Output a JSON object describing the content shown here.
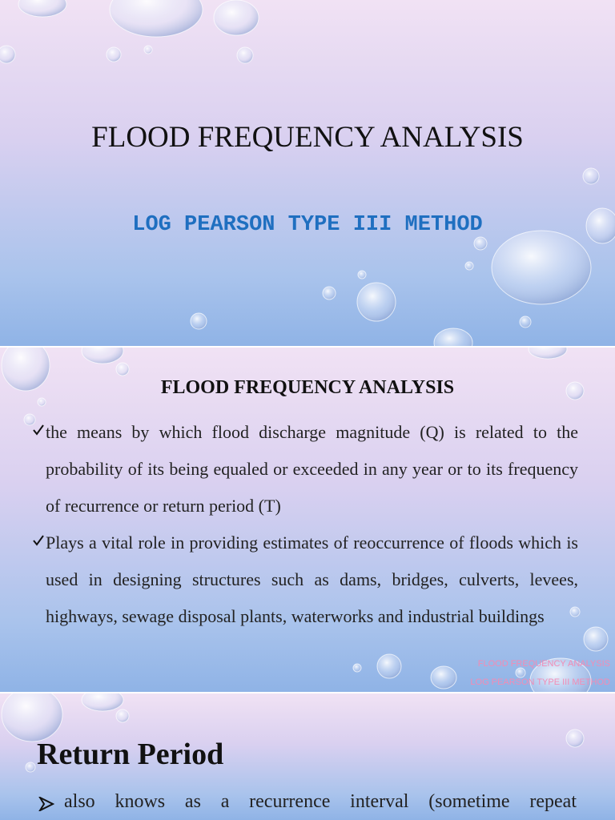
{
  "slides": [
    {
      "title": "FLOOD FREQUENCY ANALYSIS",
      "subtitle": "LOG PEARSON TYPE III METHOD"
    },
    {
      "heading": "FLOOD FREQUENCY ANALYSIS",
      "bullets": [
        "the means by which flood discharge magnitude (Q) is related to the probability of its being equaled or exceeded in any year or to its frequency of recurrence or return period (T)",
        "Plays a vital role in providing estimates of reoccurrence of floods which is used in designing structures such as dams, bridges, culverts, levees, highways, sewage disposal plants, waterworks and industrial buildings"
      ],
      "footer": [
        "FLOOD FREQUENCY ANALYSIS",
        "LOG PEARSON TYPE III METHOD"
      ]
    },
    {
      "heading": "Return Period",
      "bullets": [
        "also knows as a recurrence interval (sometime repeat"
      ]
    }
  ]
}
